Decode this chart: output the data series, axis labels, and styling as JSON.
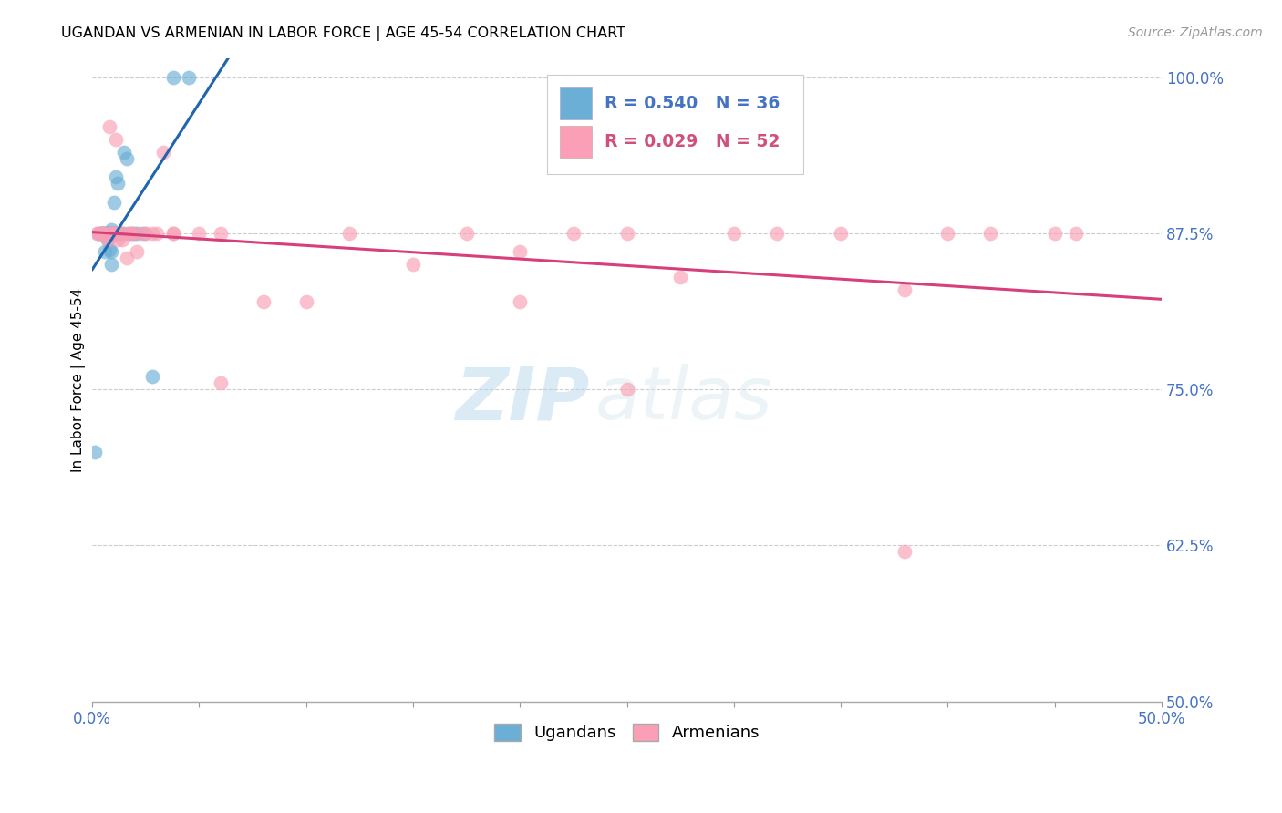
{
  "title": "UGANDAN VS ARMENIAN IN LABOR FORCE | AGE 45-54 CORRELATION CHART",
  "source": "Source: ZipAtlas.com",
  "ylabel": "In Labor Force | Age 45-54",
  "xlim": [
    0.0,
    0.5
  ],
  "ylim": [
    0.5,
    1.015
  ],
  "ytick_positions": [
    0.5,
    0.625,
    0.75,
    0.875,
    1.0
  ],
  "yticklabels_right": [
    "50.0%",
    "62.5%",
    "75.0%",
    "87.5%",
    "100.0%"
  ],
  "xtick_positions": [
    0.0,
    0.05,
    0.1,
    0.15,
    0.2,
    0.25,
    0.3,
    0.35,
    0.4,
    0.45,
    0.5
  ],
  "xticklabels": [
    "0.0%",
    "",
    "",
    "",
    "",
    "",
    "",
    "",
    "",
    "",
    "50.0%"
  ],
  "blue_scatter_color": "#6baed6",
  "pink_scatter_color": "#fa9fb5",
  "blue_line_color": "#2166ac",
  "pink_line_color": "#d63f7a",
  "watermark_zip": "ZIP",
  "watermark_atlas": "atlas",
  "ugandan_x": [
    0.001,
    0.003,
    0.004,
    0.004,
    0.005,
    0.005,
    0.006,
    0.006,
    0.007,
    0.007,
    0.007,
    0.008,
    0.008,
    0.008,
    0.009,
    0.009,
    0.009,
    0.009,
    0.01,
    0.01,
    0.01,
    0.01,
    0.011,
    0.011,
    0.012,
    0.013,
    0.014,
    0.015,
    0.016,
    0.017,
    0.019,
    0.021,
    0.024,
    0.028,
    0.038,
    0.045
  ],
  "ugandan_y": [
    0.7,
    0.875,
    0.875,
    0.875,
    0.875,
    0.875,
    0.86,
    0.875,
    0.875,
    0.87,
    0.875,
    0.875,
    0.862,
    0.875,
    0.85,
    0.86,
    0.875,
    0.878,
    0.875,
    0.875,
    0.875,
    0.9,
    0.875,
    0.92,
    0.915,
    0.875,
    0.875,
    0.94,
    0.935,
    0.875,
    0.875,
    0.875,
    0.875,
    0.76,
    1.0,
    1.0
  ],
  "armenian_x": [
    0.002,
    0.003,
    0.004,
    0.005,
    0.006,
    0.007,
    0.008,
    0.008,
    0.009,
    0.01,
    0.01,
    0.011,
    0.011,
    0.012,
    0.013,
    0.014,
    0.015,
    0.016,
    0.018,
    0.018,
    0.019,
    0.021,
    0.023,
    0.025,
    0.028,
    0.03,
    0.033,
    0.038,
    0.05,
    0.06,
    0.08,
    0.1,
    0.12,
    0.15,
    0.175,
    0.2,
    0.225,
    0.25,
    0.275,
    0.3,
    0.32,
    0.35,
    0.38,
    0.4,
    0.42,
    0.45,
    0.46,
    0.038,
    0.06,
    0.2,
    0.25,
    0.38
  ],
  "armenian_y": [
    0.875,
    0.875,
    0.875,
    0.875,
    0.875,
    0.87,
    0.875,
    0.96,
    0.875,
    0.875,
    0.875,
    0.875,
    0.95,
    0.87,
    0.875,
    0.87,
    0.875,
    0.855,
    0.875,
    0.875,
    0.875,
    0.86,
    0.875,
    0.875,
    0.875,
    0.875,
    0.94,
    0.875,
    0.875,
    0.875,
    0.82,
    0.82,
    0.875,
    0.85,
    0.875,
    0.82,
    0.875,
    0.875,
    0.84,
    0.875,
    0.875,
    0.875,
    0.83,
    0.875,
    0.875,
    0.875,
    0.875,
    0.875,
    0.755,
    0.86,
    0.75,
    0.62
  ]
}
